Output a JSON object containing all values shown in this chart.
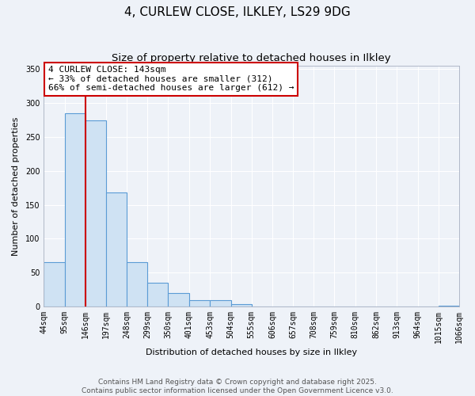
{
  "title": "4, CURLEW CLOSE, ILKLEY, LS29 9DG",
  "subtitle": "Size of property relative to detached houses in Ilkley",
  "xlabel": "Distribution of detached houses by size in Ilkley",
  "ylabel": "Number of detached properties",
  "bin_edges": [
    44,
    95,
    146,
    197,
    248,
    299,
    350,
    401,
    453,
    504,
    555,
    606,
    657,
    708,
    759,
    810,
    862,
    913,
    964,
    1015,
    1066
  ],
  "bin_labels": [
    "44sqm",
    "95sqm",
    "146sqm",
    "197sqm",
    "248sqm",
    "299sqm",
    "350sqm",
    "401sqm",
    "453sqm",
    "504sqm",
    "555sqm",
    "606sqm",
    "657sqm",
    "708sqm",
    "759sqm",
    "810sqm",
    "862sqm",
    "913sqm",
    "964sqm",
    "1015sqm",
    "1066sqm"
  ],
  "counts": [
    65,
    285,
    275,
    168,
    65,
    35,
    20,
    9,
    9,
    4,
    0,
    0,
    0,
    0,
    0,
    0,
    0,
    0,
    0,
    1
  ],
  "bar_color": "#cfe2f3",
  "bar_edge_color": "#5b9bd5",
  "vline_x": 146,
  "vline_color": "#cc0000",
  "annotation_title": "4 CURLEW CLOSE: 143sqm",
  "annotation_line1": "← 33% of detached houses are smaller (312)",
  "annotation_line2": "66% of semi-detached houses are larger (612) →",
  "annotation_box_color": "#ffffff",
  "annotation_box_edge_color": "#cc0000",
  "ylim": [
    0,
    355
  ],
  "yticks": [
    0,
    50,
    100,
    150,
    200,
    250,
    300,
    350
  ],
  "background_color": "#eef2f8",
  "grid_color": "#ffffff",
  "footer_line1": "Contains HM Land Registry data © Crown copyright and database right 2025.",
  "footer_line2": "Contains public sector information licensed under the Open Government Licence v3.0.",
  "title_fontsize": 11,
  "subtitle_fontsize": 9.5,
  "axis_label_fontsize": 8,
  "tick_fontsize": 7,
  "annotation_fontsize": 8,
  "footer_fontsize": 6.5
}
